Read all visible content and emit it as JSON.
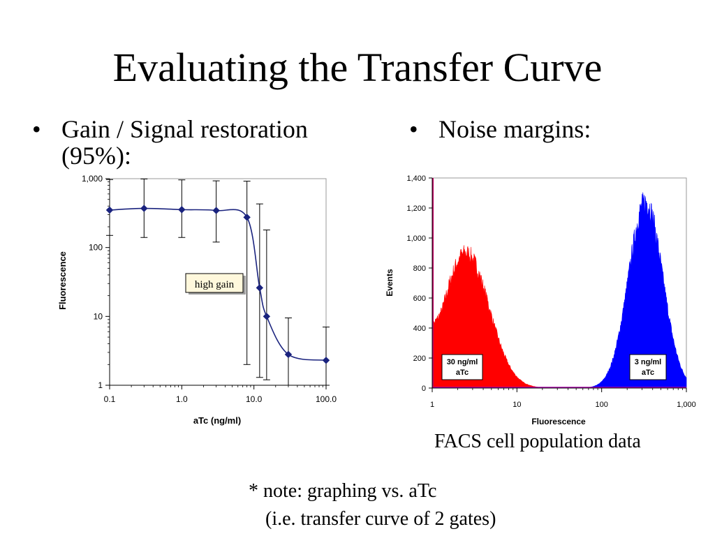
{
  "slide": {
    "title": "Evaluating the Transfer Curve",
    "bullet_left_line1": "Gain / Signal restoration",
    "bullet_left_line2": "(95%):",
    "bullet_right": "Noise margins:",
    "bullet_symbol": "•",
    "caption": "FACS cell population data",
    "note_line1": "* note: graphing vs. aTc",
    "note_line2": "(i.e. transfer curve of 2 gates)"
  },
  "chart_data": [
    {
      "type": "line",
      "xlabel": "aTc (ng/ml)",
      "ylabel": "Fluorescence",
      "x_scale": "log",
      "y_scale": "log",
      "xlim": [
        0.1,
        100
      ],
      "ylim": [
        1,
        1000
      ],
      "x_ticks": [
        "0.1",
        "1.0",
        "10.0",
        "100.0"
      ],
      "y_ticks": [
        "1",
        "10",
        "100",
        "1,000"
      ],
      "annotation": "high gain",
      "line_color": "#1a237e",
      "series": [
        {
          "points": [
            {
              "x": 0.1,
              "y": 350,
              "err_low": 150,
              "err_high": 970
            },
            {
              "x": 0.3,
              "y": 370,
              "err_low": 140,
              "err_high": 990
            },
            {
              "x": 1.0,
              "y": 355,
              "err_low": 140,
              "err_high": 960
            },
            {
              "x": 3.0,
              "y": 345,
              "err_low": 120,
              "err_high": 930
            },
            {
              "x": 8.0,
              "y": 275,
              "err_low": 2.0,
              "err_high": 920
            },
            {
              "x": 12.0,
              "y": 26,
              "err_low": 1.3,
              "err_high": 430
            },
            {
              "x": 15.0,
              "y": 10,
              "err_low": 1.2,
              "err_high": 180
            },
            {
              "x": 30.0,
              "y": 2.8,
              "err_low": 1.0,
              "err_high": 9.5
            },
            {
              "x": 100.0,
              "y": 2.3,
              "err_low": 1.0,
              "err_high": 7.0
            }
          ]
        }
      ]
    },
    {
      "type": "histogram",
      "xlabel": "Fluorescence",
      "ylabel": "Events",
      "x_scale": "log",
      "xlim": [
        1,
        1000
      ],
      "ylim": [
        0,
        1400
      ],
      "x_ticks": [
        "1",
        "10",
        "100",
        "1,000"
      ],
      "y_ticks": [
        "0",
        "200",
        "400",
        "600",
        "800",
        "1,000",
        "1,200",
        "1,400"
      ],
      "series": [
        {
          "label": "30 ng/ml aTc",
          "label_line1": "30 ng/ml",
          "label_line2": "aTc",
          "color": "#ff0000",
          "peak_x": 2.5,
          "peak_y": 900,
          "log_sigma": 0.27,
          "left_edge_y": 420
        },
        {
          "label": "3 ng/ml aTc",
          "label_line1": "3 ng/ml",
          "label_line2": "aTc",
          "color": "#0000ff",
          "peak_x": 330,
          "peak_y": 1240,
          "log_sigma": 0.2
        }
      ]
    }
  ]
}
